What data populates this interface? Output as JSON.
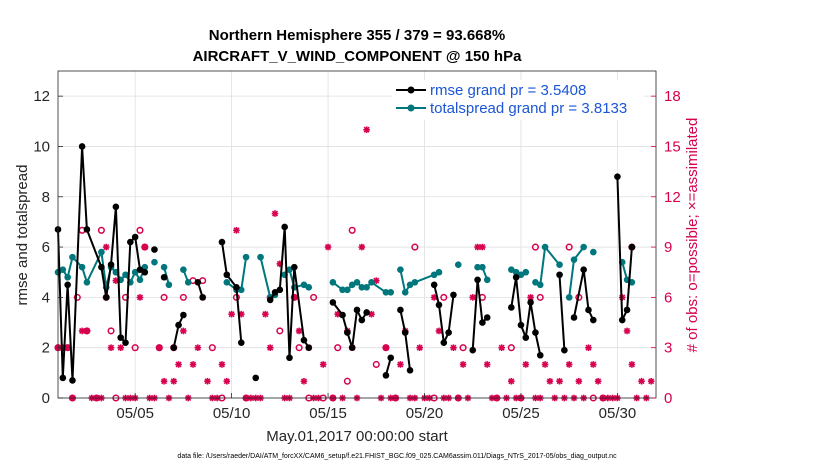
{
  "chart_data": {
    "type": "line",
    "title_line1": "Northern Hemisphere 355 / 379 = 93.668%",
    "title_line2": "AIRCRAFT_V_WIND_COMPONENT @ 150 hPa",
    "xlabel": "May.01,2017 00:00:00 start",
    "ylabel": "rmse and totalspread",
    "ylabel_right": "# of obs: o=possible; ×=assimilated",
    "footnote": "data file: /Users/raeder/DAI/ATM_forcXX/CAM6_setup/f.e21.FHIST_BGC.f09_025.CAM6assim.011/Diags_NTrS_2017-05/obs_diag_output.nc",
    "xlim": [
      1,
      32
    ],
    "ylim": [
      0,
      13
    ],
    "ylim_right": [
      0,
      19.5
    ],
    "x_ticks": [
      5,
      10,
      15,
      20,
      25,
      30
    ],
    "x_tick_labels": [
      "05/05",
      "05/10",
      "05/15",
      "05/20",
      "05/25",
      "05/30"
    ],
    "y_ticks": [
      0,
      2,
      4,
      6,
      8,
      10,
      12
    ],
    "y_tick_labels": [
      "0",
      "2",
      "4",
      "6",
      "8",
      "10",
      "12"
    ],
    "y_right_ticks": [
      0,
      3,
      6,
      9,
      12,
      15,
      18
    ],
    "y_right_tick_labels": [
      "0",
      "3",
      "6",
      "9",
      "12",
      "15",
      "18"
    ],
    "series": [
      {
        "name": "rmse grand pr = 3.5408",
        "color": "#000000",
        "points": [
          [
            1.0,
            6.7
          ],
          [
            1.25,
            0.8
          ],
          [
            1.5,
            4.5
          ],
          [
            1.75,
            0.7
          ],
          [
            2.25,
            10.0
          ],
          [
            2.5,
            6.7
          ],
          [
            3.25,
            5.2
          ],
          [
            3.5,
            4.0
          ],
          [
            3.75,
            5.3
          ],
          [
            4.0,
            7.6
          ],
          [
            4.25,
            2.4
          ],
          [
            4.5,
            2.2
          ],
          [
            4.75,
            6.2
          ],
          [
            5.0,
            6.4
          ],
          [
            5.25,
            5.1
          ],
          [
            5.5,
            5.0
          ],
          [
            5.75,
            null
          ],
          [
            6.0,
            5.9
          ],
          [
            6.25,
            null
          ],
          [
            6.5,
            4.8
          ],
          [
            6.75,
            null
          ],
          [
            7.0,
            2.0
          ],
          [
            7.25,
            2.9
          ],
          [
            7.5,
            3.3
          ],
          [
            7.75,
            null
          ],
          [
            8.25,
            4.6
          ],
          [
            8.5,
            4.0
          ],
          [
            8.75,
            null
          ],
          [
            9.5,
            6.2
          ],
          [
            9.75,
            4.9
          ],
          [
            10.25,
            4.4
          ],
          [
            10.5,
            2.2
          ],
          [
            10.75,
            null
          ],
          [
            11.25,
            0.8
          ],
          [
            11.5,
            null
          ],
          [
            12.0,
            3.9
          ],
          [
            12.25,
            4.2
          ],
          [
            12.5,
            4.3
          ],
          [
            12.75,
            6.8
          ],
          [
            13.0,
            1.6
          ],
          [
            13.25,
            5.2
          ],
          [
            13.75,
            2.3
          ],
          [
            14.0,
            2.0
          ],
          [
            14.5,
            null
          ],
          [
            15.25,
            3.8
          ],
          [
            15.75,
            3.3
          ],
          [
            16.0,
            2.6
          ],
          [
            16.25,
            2.0
          ],
          [
            16.5,
            3.5
          ],
          [
            16.75,
            3.1
          ],
          [
            17.0,
            3.4
          ],
          [
            17.25,
            null
          ],
          [
            18.0,
            0.9
          ],
          [
            18.25,
            1.6
          ],
          [
            18.5,
            null
          ],
          [
            18.75,
            3.5
          ],
          [
            19.0,
            2.6
          ],
          [
            19.25,
            1.1
          ],
          [
            19.5,
            null
          ],
          [
            20.5,
            4.5
          ],
          [
            20.75,
            3.7
          ],
          [
            21.0,
            2.2
          ],
          [
            21.25,
            2.6
          ],
          [
            21.5,
            4.1
          ],
          [
            21.75,
            null
          ],
          [
            22.5,
            1.9
          ],
          [
            22.75,
            4.7
          ],
          [
            23.0,
            3.0
          ],
          [
            23.25,
            3.2
          ],
          [
            23.5,
            null
          ],
          [
            24.5,
            3.6
          ],
          [
            24.75,
            4.8
          ],
          [
            25.0,
            2.9
          ],
          [
            25.25,
            2.4
          ],
          [
            25.5,
            3.8
          ],
          [
            25.75,
            2.6
          ],
          [
            26.0,
            1.7
          ],
          [
            26.25,
            null
          ],
          [
            27.0,
            4.9
          ],
          [
            27.25,
            1.9
          ],
          [
            27.5,
            null
          ],
          [
            27.75,
            3.2
          ],
          [
            28.25,
            5.1
          ],
          [
            28.5,
            3.5
          ],
          [
            28.75,
            3.1
          ],
          [
            29.0,
            null
          ],
          [
            30.0,
            8.8
          ],
          [
            30.25,
            3.1
          ],
          [
            30.5,
            3.5
          ],
          [
            30.75,
            6.0
          ]
        ]
      },
      {
        "name": "totalspread grand pr = 3.8133",
        "color": "#00777d",
        "points": [
          [
            1.0,
            5.0
          ],
          [
            1.25,
            5.1
          ],
          [
            1.5,
            4.8
          ],
          [
            1.75,
            5.6
          ],
          [
            2.25,
            5.2
          ],
          [
            2.5,
            4.6
          ],
          [
            3.25,
            5.8
          ],
          [
            3.5,
            4.4
          ],
          [
            3.75,
            5.2
          ],
          [
            4.0,
            5.0
          ],
          [
            4.25,
            4.7
          ],
          [
            4.5,
            4.9
          ],
          [
            4.75,
            4.6
          ],
          [
            5.0,
            5.0
          ],
          [
            5.25,
            4.7
          ],
          [
            5.5,
            5.2
          ],
          [
            5.75,
            null
          ],
          [
            6.0,
            5.4
          ],
          [
            6.25,
            null
          ],
          [
            6.5,
            5.2
          ],
          [
            6.75,
            4.5
          ],
          [
            7.0,
            null
          ],
          [
            7.25,
            null
          ],
          [
            7.5,
            5.1
          ],
          [
            7.75,
            4.6
          ],
          [
            8.25,
            null
          ],
          [
            8.5,
            null
          ],
          [
            8.75,
            null
          ],
          [
            9.5,
            null
          ],
          [
            9.75,
            4.6
          ],
          [
            10.25,
            4.3
          ],
          [
            10.5,
            4.3
          ],
          [
            10.75,
            5.6
          ],
          [
            11.25,
            null
          ],
          [
            11.5,
            5.6
          ],
          [
            12.0,
            4.0
          ],
          [
            12.25,
            4.1
          ],
          [
            12.5,
            null
          ],
          [
            12.75,
            4.9
          ],
          [
            13.0,
            5.1
          ],
          [
            13.25,
            4.4
          ],
          [
            13.75,
            4.5
          ],
          [
            14.0,
            4.4
          ],
          [
            14.5,
            null
          ],
          [
            15.25,
            4.6
          ],
          [
            15.75,
            4.3
          ],
          [
            16.0,
            4.3
          ],
          [
            16.25,
            4.5
          ],
          [
            16.5,
            4.6
          ],
          [
            16.75,
            4.4
          ],
          [
            17.0,
            4.4
          ],
          [
            17.25,
            4.6
          ],
          [
            18.0,
            4.2
          ],
          [
            18.25,
            4.2
          ],
          [
            18.5,
            null
          ],
          [
            18.75,
            5.1
          ],
          [
            19.0,
            4.2
          ],
          [
            19.25,
            4.5
          ],
          [
            19.5,
            4.6
          ],
          [
            20.5,
            4.9
          ],
          [
            20.75,
            5.0
          ],
          [
            21.0,
            null
          ],
          [
            21.25,
            null
          ],
          [
            21.5,
            null
          ],
          [
            21.75,
            5.3
          ],
          [
            22.5,
            null
          ],
          [
            22.75,
            5.2
          ],
          [
            23.0,
            5.2
          ],
          [
            23.25,
            4.7
          ],
          [
            23.5,
            null
          ],
          [
            24.5,
            5.1
          ],
          [
            24.75,
            5.0
          ],
          [
            25.0,
            4.9
          ],
          [
            25.25,
            5.0
          ],
          [
            25.5,
            null
          ],
          [
            25.75,
            4.6
          ],
          [
            26.0,
            4.5
          ],
          [
            26.25,
            6.0
          ],
          [
            27.0,
            5.3
          ],
          [
            27.25,
            null
          ],
          [
            27.5,
            4.0
          ],
          [
            27.75,
            5.5
          ],
          [
            28.25,
            6.0
          ],
          [
            28.5,
            null
          ],
          [
            28.75,
            5.8
          ],
          [
            29.0,
            null
          ],
          [
            30.0,
            null
          ],
          [
            30.25,
            5.4
          ],
          [
            30.5,
            4.7
          ],
          [
            30.75,
            4.6
          ]
        ]
      }
    ],
    "obs_possible": [
      [
        1.0,
        3
      ],
      [
        1.5,
        3
      ],
      [
        1.75,
        0
      ],
      [
        2.0,
        6
      ],
      [
        2.25,
        10
      ],
      [
        2.5,
        4
      ],
      [
        3.0,
        0
      ],
      [
        3.25,
        10
      ],
      [
        3.5,
        6
      ],
      [
        3.75,
        4
      ],
      [
        4.0,
        0
      ],
      [
        4.5,
        6
      ],
      [
        5.0,
        3
      ],
      [
        5.25,
        10
      ],
      [
        5.5,
        9
      ],
      [
        6.25,
        3
      ],
      [
        6.5,
        6
      ],
      [
        7.0,
        3
      ],
      [
        7.5,
        6
      ],
      [
        8.0,
        7
      ],
      [
        8.5,
        7
      ],
      [
        9.0,
        3
      ],
      [
        9.5,
        0
      ],
      [
        10.25,
        6
      ],
      [
        10.75,
        0
      ],
      [
        12.0,
        6
      ],
      [
        12.5,
        4
      ],
      [
        13.25,
        6
      ],
      [
        13.5,
        3
      ],
      [
        14.0,
        0
      ],
      [
        14.25,
        6
      ],
      [
        14.75,
        0
      ],
      [
        15.25,
        0
      ],
      [
        15.5,
        3
      ],
      [
        16.0,
        1
      ],
      [
        16.25,
        10
      ],
      [
        17.5,
        2
      ],
      [
        18.0,
        3
      ],
      [
        18.5,
        0
      ],
      [
        19.5,
        9
      ],
      [
        20.5,
        0
      ],
      [
        21.0,
        6
      ],
      [
        21.75,
        0
      ],
      [
        22.0,
        3
      ],
      [
        23.0,
        6
      ],
      [
        23.75,
        0
      ],
      [
        24.5,
        3
      ],
      [
        25.0,
        0
      ],
      [
        25.75,
        9
      ],
      [
        26.0,
        6
      ],
      [
        27.5,
        9
      ],
      [
        28.0,
        6
      ],
      [
        28.75,
        0
      ],
      [
        29.25,
        0
      ],
      [
        30.75,
        9
      ]
    ],
    "obs_assimilated": [
      [
        1.0,
        3
      ],
      [
        1.25,
        3
      ],
      [
        1.5,
        3
      ],
      [
        1.75,
        0
      ],
      [
        2.25,
        4
      ],
      [
        2.5,
        4
      ],
      [
        2.75,
        0
      ],
      [
        3.0,
        0
      ],
      [
        3.25,
        0
      ],
      [
        3.5,
        9
      ],
      [
        3.75,
        3
      ],
      [
        4.0,
        7
      ],
      [
        4.25,
        3
      ],
      [
        4.5,
        0
      ],
      [
        4.75,
        0
      ],
      [
        5.0,
        0
      ],
      [
        5.25,
        6
      ],
      [
        5.5,
        9
      ],
      [
        5.75,
        0
      ],
      [
        6.0,
        0
      ],
      [
        6.25,
        3
      ],
      [
        6.5,
        1
      ],
      [
        6.75,
        0
      ],
      [
        7.0,
        1
      ],
      [
        7.25,
        2
      ],
      [
        7.5,
        4
      ],
      [
        7.75,
        0
      ],
      [
        8.0,
        2
      ],
      [
        8.25,
        3
      ],
      [
        8.5,
        6
      ],
      [
        8.75,
        1
      ],
      [
        9.0,
        0
      ],
      [
        9.25,
        0
      ],
      [
        9.5,
        2
      ],
      [
        9.75,
        1
      ],
      [
        10.0,
        5
      ],
      [
        10.25,
        10
      ],
      [
        10.5,
        5
      ],
      [
        10.75,
        0
      ],
      [
        11.0,
        0
      ],
      [
        11.25,
        0
      ],
      [
        11.5,
        0
      ],
      [
        11.75,
        5
      ],
      [
        12.0,
        3
      ],
      [
        12.25,
        11
      ],
      [
        12.5,
        8
      ],
      [
        12.75,
        0
      ],
      [
        13.0,
        0
      ],
      [
        13.25,
        6
      ],
      [
        13.5,
        4
      ],
      [
        13.75,
        1
      ],
      [
        14.0,
        3
      ],
      [
        14.25,
        0
      ],
      [
        14.5,
        0
      ],
      [
        14.75,
        2
      ],
      [
        15.0,
        9
      ],
      [
        15.25,
        0
      ],
      [
        15.5,
        5
      ],
      [
        15.75,
        0
      ],
      [
        16.0,
        4
      ],
      [
        16.25,
        3
      ],
      [
        16.5,
        0
      ],
      [
        16.75,
        9
      ],
      [
        17.0,
        16
      ],
      [
        17.25,
        5
      ],
      [
        17.5,
        7
      ],
      [
        17.75,
        0
      ],
      [
        18.0,
        3
      ],
      [
        18.25,
        0
      ],
      [
        18.5,
        0
      ],
      [
        18.75,
        2
      ],
      [
        19.0,
        4
      ],
      [
        19.25,
        0
      ],
      [
        19.5,
        0
      ],
      [
        19.75,
        3
      ],
      [
        20.0,
        0
      ],
      [
        20.25,
        0
      ],
      [
        20.5,
        6
      ],
      [
        20.75,
        4
      ],
      [
        21.0,
        0
      ],
      [
        21.25,
        0
      ],
      [
        21.5,
        3
      ],
      [
        21.75,
        0
      ],
      [
        22.0,
        2
      ],
      [
        22.25,
        0
      ],
      [
        22.5,
        6
      ],
      [
        22.75,
        9
      ],
      [
        23.0,
        9
      ],
      [
        23.25,
        2
      ],
      [
        23.5,
        0
      ],
      [
        23.75,
        0
      ],
      [
        24.0,
        3
      ],
      [
        24.25,
        0
      ],
      [
        24.5,
        1
      ],
      [
        24.75,
        0
      ],
      [
        25.0,
        0
      ],
      [
        25.25,
        2
      ],
      [
        25.5,
        6
      ],
      [
        25.75,
        0
      ],
      [
        26.0,
        0
      ],
      [
        26.25,
        2
      ],
      [
        26.5,
        1
      ],
      [
        26.75,
        0
      ],
      [
        27.0,
        1
      ],
      [
        27.25,
        0
      ],
      [
        27.5,
        2
      ],
      [
        27.75,
        0
      ],
      [
        28.0,
        1
      ],
      [
        28.25,
        0
      ],
      [
        28.5,
        3
      ],
      [
        28.75,
        2
      ],
      [
        29.0,
        1
      ],
      [
        29.25,
        0
      ],
      [
        29.5,
        0
      ],
      [
        29.75,
        0
      ],
      [
        30.0,
        0
      ],
      [
        30.25,
        6
      ],
      [
        30.5,
        4
      ],
      [
        30.75,
        2
      ],
      [
        31.0,
        0
      ],
      [
        31.25,
        1
      ],
      [
        31.5,
        0
      ],
      [
        31.75,
        1
      ]
    ]
  }
}
